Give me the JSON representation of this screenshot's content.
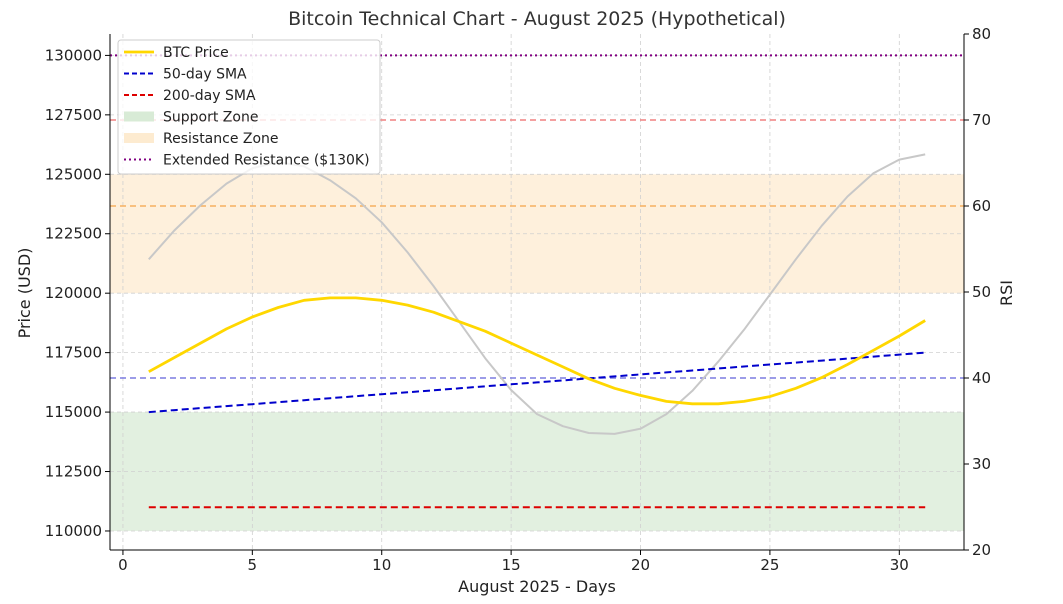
{
  "chart_data": {
    "type": "line",
    "title": "Bitcoin Technical Chart - August 2025 (Hypothetical)",
    "xlabel": "August 2025 - Days",
    "ylabel": "Price (USD)",
    "y2label": "RSI",
    "xlim": [
      -0.5,
      32.5
    ],
    "ylim": [
      109200,
      130900
    ],
    "y2lim": [
      20,
      80
    ],
    "x_ticks": [
      "0",
      "5",
      "10",
      "15",
      "20",
      "25",
      "30"
    ],
    "y_ticks": [
      "110000",
      "112500",
      "115000",
      "117500",
      "120000",
      "122500",
      "125000",
      "127500",
      "130000"
    ],
    "y2_ticks": [
      "20",
      "30",
      "40",
      "50",
      "60",
      "70",
      "80"
    ],
    "grid": true,
    "legend_position": "top-left",
    "colors": {
      "btc": "#FFD700",
      "sma50": "#0000CC",
      "sma200": "#DD0000",
      "support": "#D8EBD6",
      "resistance": "#FDEBD0",
      "extended": "#800080",
      "rsi": "#C8C8C8",
      "rsi70": "#F08080",
      "rsi60": "#F5B060",
      "rsi40": "#7B7BE0"
    },
    "legend": [
      "BTC Price",
      "50-day SMA",
      "200-day SMA",
      "Support Zone",
      "Resistance Zone",
      "Extended Resistance ($130K)"
    ],
    "x": [
      1,
      2,
      3,
      4,
      5,
      6,
      7,
      8,
      9,
      10,
      11,
      12,
      13,
      14,
      15,
      16,
      17,
      18,
      19,
      20,
      21,
      22,
      23,
      24,
      25,
      26,
      27,
      28,
      29,
      30,
      31
    ],
    "series": [
      {
        "name": "BTC Price",
        "axis": "price",
        "values": [
          116700,
          117300,
          117900,
          118500,
          119000,
          119400,
          119700,
          119800,
          119800,
          119700,
          119500,
          119200,
          118800,
          118400,
          117900,
          117400,
          116900,
          116400,
          116000,
          115700,
          115450,
          115350,
          115350,
          115450,
          115650,
          116000,
          116450,
          117000,
          117600,
          118200,
          118850
        ]
      },
      {
        "name": "50-day SMA",
        "axis": "price",
        "values": [
          115000,
          115083,
          115167,
          115250,
          115333,
          115417,
          115500,
          115583,
          115667,
          115750,
          115833,
          115917,
          116000,
          116083,
          116167,
          116250,
          116333,
          116417,
          116500,
          116583,
          116667,
          116750,
          116833,
          116917,
          117000,
          117083,
          117167,
          117250,
          117333,
          117417,
          117500
        ]
      },
      {
        "name": "200-day SMA",
        "axis": "price",
        "values": [
          111000,
          111000,
          111000,
          111000,
          111000,
          111000,
          111000,
          111000,
          111000,
          111000,
          111000,
          111000,
          111000,
          111000,
          111000,
          111000,
          111000,
          111000,
          111000,
          111000,
          111000,
          111000,
          111000,
          111000,
          111000,
          111000,
          111000,
          111000,
          111000,
          111000,
          111000
        ]
      },
      {
        "name": "RSI",
        "axis": "rsi",
        "values": [
          53.8,
          57.2,
          60.1,
          62.6,
          64.4,
          65.1,
          64.6,
          63.0,
          60.9,
          58.1,
          54.6,
          50.7,
          46.5,
          42.3,
          38.6,
          35.8,
          34.4,
          33.6,
          33.5,
          34.1,
          35.8,
          38.5,
          41.9,
          45.6,
          49.7,
          53.8,
          57.7,
          61.1,
          63.8,
          65.4,
          66.0
        ]
      }
    ],
    "zones": [
      {
        "name": "Support Zone",
        "from": 110000,
        "to": 115000
      },
      {
        "name": "Resistance Zone",
        "from": 120000,
        "to": 125000
      }
    ],
    "hlines": [
      {
        "name": "Extended Resistance ($130K)",
        "axis": "price",
        "value": 130000
      },
      {
        "axis": "rsi",
        "value": 70
      },
      {
        "axis": "rsi",
        "value": 60
      },
      {
        "axis": "rsi",
        "value": 40
      }
    ]
  }
}
